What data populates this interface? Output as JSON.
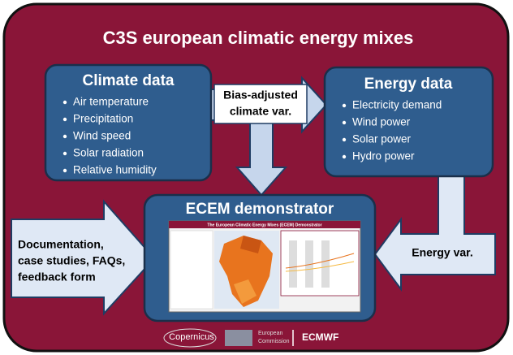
{
  "title": "C3S european climatic energy mixes",
  "nodes": [
    {
      "label": "Climate data",
      "items": [
        "Air temperature",
        "Precipitation",
        "Wind speed",
        "Solar radiation",
        "Relative humidity"
      ]
    },
    {
      "label": "Energy data",
      "items": [
        "Electricity demand",
        "Wind power",
        "Solar power",
        "Hydro power"
      ]
    },
    {
      "label": "ECEM demonstrator",
      "screenshot_title": "The European Climatic Energy Mixes (ECEM) Demonstrator"
    }
  ],
  "arrows": [
    {
      "lines": [
        "Bias-adjusted",
        "climate var."
      ]
    },
    {
      "lines": [
        "Documentation,",
        "case studies, FAQs,",
        "feedback form"
      ]
    },
    {
      "lines": [
        "Energy var."
      ]
    }
  ],
  "logos": [
    "Copernicus",
    "European",
    "Commission",
    "ECMWF"
  ]
}
